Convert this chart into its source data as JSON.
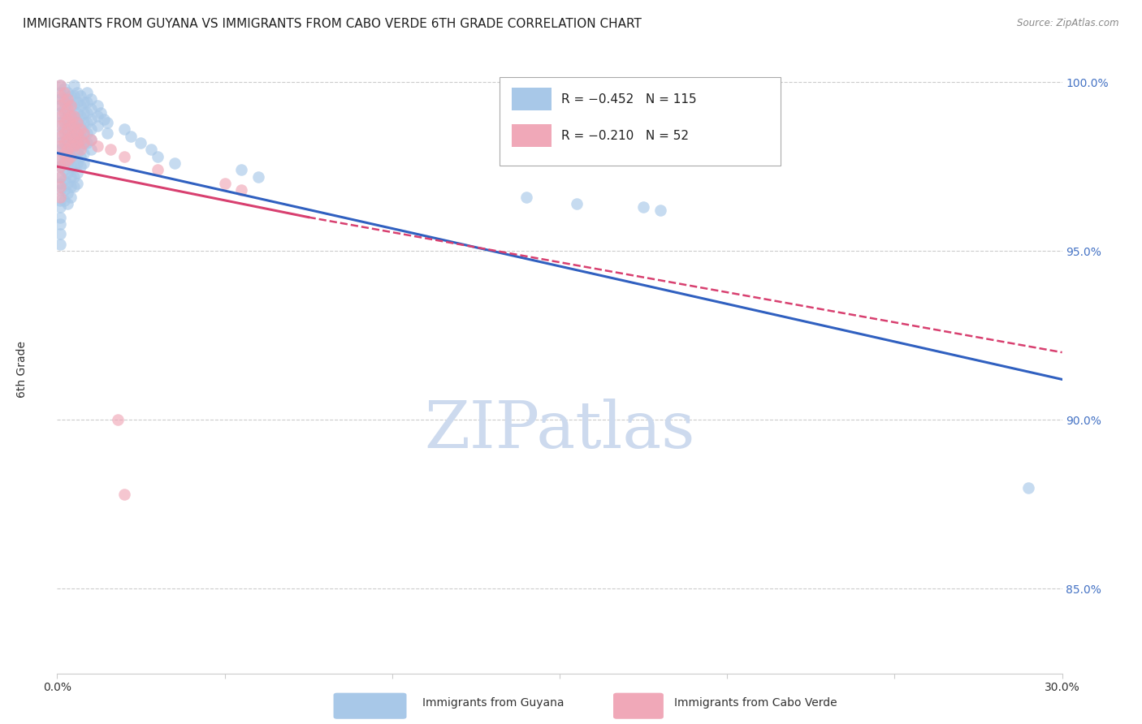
{
  "title": "IMMIGRANTS FROM GUYANA VS IMMIGRANTS FROM CABO VERDE 6TH GRADE CORRELATION CHART",
  "source": "Source: ZipAtlas.com",
  "ylabel": "6th Grade",
  "xlim": [
    0.0,
    0.3
  ],
  "ylim": [
    0.825,
    1.005
  ],
  "yticks": [
    0.85,
    0.9,
    0.95,
    1.0
  ],
  "ytick_labels": [
    "85.0%",
    "90.0%",
    "95.0%",
    "100.0%"
  ],
  "guyana_color": "#a8c8e8",
  "caboverde_color": "#f0a8b8",
  "guyana_line_color": "#3060c0",
  "caboverde_line_color": "#d84070",
  "background_color": "#ffffff",
  "grid_color": "#cccccc",
  "watermark_color": "#cddaee",
  "guyana_points": [
    [
      0.001,
      0.999
    ],
    [
      0.001,
      0.997
    ],
    [
      0.001,
      0.995
    ],
    [
      0.001,
      0.993
    ],
    [
      0.001,
      0.991
    ],
    [
      0.001,
      0.988
    ],
    [
      0.001,
      0.985
    ],
    [
      0.001,
      0.982
    ],
    [
      0.001,
      0.98
    ],
    [
      0.001,
      0.977
    ],
    [
      0.001,
      0.975
    ],
    [
      0.001,
      0.972
    ],
    [
      0.001,
      0.97
    ],
    [
      0.001,
      0.968
    ],
    [
      0.001,
      0.965
    ],
    [
      0.001,
      0.963
    ],
    [
      0.001,
      0.96
    ],
    [
      0.001,
      0.958
    ],
    [
      0.001,
      0.955
    ],
    [
      0.001,
      0.952
    ],
    [
      0.002,
      0.998
    ],
    [
      0.002,
      0.995
    ],
    [
      0.002,
      0.992
    ],
    [
      0.002,
      0.989
    ],
    [
      0.002,
      0.986
    ],
    [
      0.002,
      0.983
    ],
    [
      0.002,
      0.98
    ],
    [
      0.002,
      0.977
    ],
    [
      0.002,
      0.974
    ],
    [
      0.002,
      0.971
    ],
    [
      0.002,
      0.968
    ],
    [
      0.002,
      0.965
    ],
    [
      0.003,
      0.997
    ],
    [
      0.003,
      0.994
    ],
    [
      0.003,
      0.991
    ],
    [
      0.003,
      0.988
    ],
    [
      0.003,
      0.985
    ],
    [
      0.003,
      0.982
    ],
    [
      0.003,
      0.979
    ],
    [
      0.003,
      0.976
    ],
    [
      0.003,
      0.973
    ],
    [
      0.003,
      0.97
    ],
    [
      0.003,
      0.967
    ],
    [
      0.003,
      0.964
    ],
    [
      0.004,
      0.996
    ],
    [
      0.004,
      0.993
    ],
    [
      0.004,
      0.99
    ],
    [
      0.004,
      0.987
    ],
    [
      0.004,
      0.984
    ],
    [
      0.004,
      0.981
    ],
    [
      0.004,
      0.978
    ],
    [
      0.004,
      0.975
    ],
    [
      0.004,
      0.972
    ],
    [
      0.004,
      0.969
    ],
    [
      0.004,
      0.966
    ],
    [
      0.005,
      0.999
    ],
    [
      0.005,
      0.996
    ],
    [
      0.005,
      0.993
    ],
    [
      0.005,
      0.99
    ],
    [
      0.005,
      0.987
    ],
    [
      0.005,
      0.984
    ],
    [
      0.005,
      0.981
    ],
    [
      0.005,
      0.978
    ],
    [
      0.005,
      0.975
    ],
    [
      0.005,
      0.972
    ],
    [
      0.005,
      0.969
    ],
    [
      0.006,
      0.997
    ],
    [
      0.006,
      0.994
    ],
    [
      0.006,
      0.991
    ],
    [
      0.006,
      0.988
    ],
    [
      0.006,
      0.985
    ],
    [
      0.006,
      0.982
    ],
    [
      0.006,
      0.979
    ],
    [
      0.006,
      0.976
    ],
    [
      0.006,
      0.973
    ],
    [
      0.006,
      0.97
    ],
    [
      0.007,
      0.996
    ],
    [
      0.007,
      0.993
    ],
    [
      0.007,
      0.99
    ],
    [
      0.007,
      0.987
    ],
    [
      0.007,
      0.984
    ],
    [
      0.007,
      0.981
    ],
    [
      0.007,
      0.978
    ],
    [
      0.007,
      0.975
    ],
    [
      0.008,
      0.994
    ],
    [
      0.008,
      0.991
    ],
    [
      0.008,
      0.988
    ],
    [
      0.008,
      0.985
    ],
    [
      0.008,
      0.982
    ],
    [
      0.008,
      0.979
    ],
    [
      0.008,
      0.976
    ],
    [
      0.009,
      0.997
    ],
    [
      0.009,
      0.994
    ],
    [
      0.009,
      0.991
    ],
    [
      0.009,
      0.988
    ],
    [
      0.009,
      0.985
    ],
    [
      0.009,
      0.982
    ],
    [
      0.01,
      0.995
    ],
    [
      0.01,
      0.992
    ],
    [
      0.01,
      0.989
    ],
    [
      0.01,
      0.986
    ],
    [
      0.01,
      0.983
    ],
    [
      0.01,
      0.98
    ],
    [
      0.012,
      0.993
    ],
    [
      0.012,
      0.99
    ],
    [
      0.012,
      0.987
    ],
    [
      0.013,
      0.991
    ],
    [
      0.014,
      0.989
    ],
    [
      0.015,
      0.988
    ],
    [
      0.015,
      0.985
    ],
    [
      0.02,
      0.986
    ],
    [
      0.022,
      0.984
    ],
    [
      0.025,
      0.982
    ],
    [
      0.028,
      0.98
    ],
    [
      0.03,
      0.978
    ],
    [
      0.035,
      0.976
    ],
    [
      0.055,
      0.974
    ],
    [
      0.06,
      0.972
    ],
    [
      0.14,
      0.966
    ],
    [
      0.155,
      0.964
    ],
    [
      0.175,
      0.963
    ],
    [
      0.18,
      0.962
    ],
    [
      0.29,
      0.88
    ]
  ],
  "caboverde_points": [
    [
      0.001,
      0.999
    ],
    [
      0.001,
      0.996
    ],
    [
      0.001,
      0.993
    ],
    [
      0.001,
      0.99
    ],
    [
      0.001,
      0.987
    ],
    [
      0.001,
      0.984
    ],
    [
      0.001,
      0.981
    ],
    [
      0.001,
      0.978
    ],
    [
      0.001,
      0.975
    ],
    [
      0.001,
      0.972
    ],
    [
      0.001,
      0.969
    ],
    [
      0.001,
      0.966
    ],
    [
      0.002,
      0.997
    ],
    [
      0.002,
      0.994
    ],
    [
      0.002,
      0.991
    ],
    [
      0.002,
      0.988
    ],
    [
      0.002,
      0.985
    ],
    [
      0.002,
      0.982
    ],
    [
      0.002,
      0.979
    ],
    [
      0.002,
      0.976
    ],
    [
      0.003,
      0.995
    ],
    [
      0.003,
      0.992
    ],
    [
      0.003,
      0.989
    ],
    [
      0.003,
      0.986
    ],
    [
      0.003,
      0.983
    ],
    [
      0.003,
      0.98
    ],
    [
      0.003,
      0.977
    ],
    [
      0.004,
      0.993
    ],
    [
      0.004,
      0.99
    ],
    [
      0.004,
      0.987
    ],
    [
      0.004,
      0.984
    ],
    [
      0.004,
      0.981
    ],
    [
      0.004,
      0.978
    ],
    [
      0.005,
      0.99
    ],
    [
      0.005,
      0.987
    ],
    [
      0.005,
      0.984
    ],
    [
      0.005,
      0.981
    ],
    [
      0.006,
      0.988
    ],
    [
      0.006,
      0.985
    ],
    [
      0.006,
      0.982
    ],
    [
      0.007,
      0.986
    ],
    [
      0.007,
      0.983
    ],
    [
      0.007,
      0.98
    ],
    [
      0.008,
      0.985
    ],
    [
      0.008,
      0.982
    ],
    [
      0.01,
      0.983
    ],
    [
      0.012,
      0.981
    ],
    [
      0.016,
      0.98
    ],
    [
      0.02,
      0.978
    ],
    [
      0.03,
      0.974
    ],
    [
      0.05,
      0.97
    ],
    [
      0.055,
      0.968
    ],
    [
      0.018,
      0.9
    ],
    [
      0.02,
      0.878
    ]
  ],
  "guyana_regr": [
    0.0,
    0.979,
    0.3,
    0.912
  ],
  "caboverde_regr_solid": [
    0.0,
    0.975,
    0.075,
    0.96
  ],
  "caboverde_regr_dash": [
    0.075,
    0.96,
    0.3,
    0.92
  ]
}
